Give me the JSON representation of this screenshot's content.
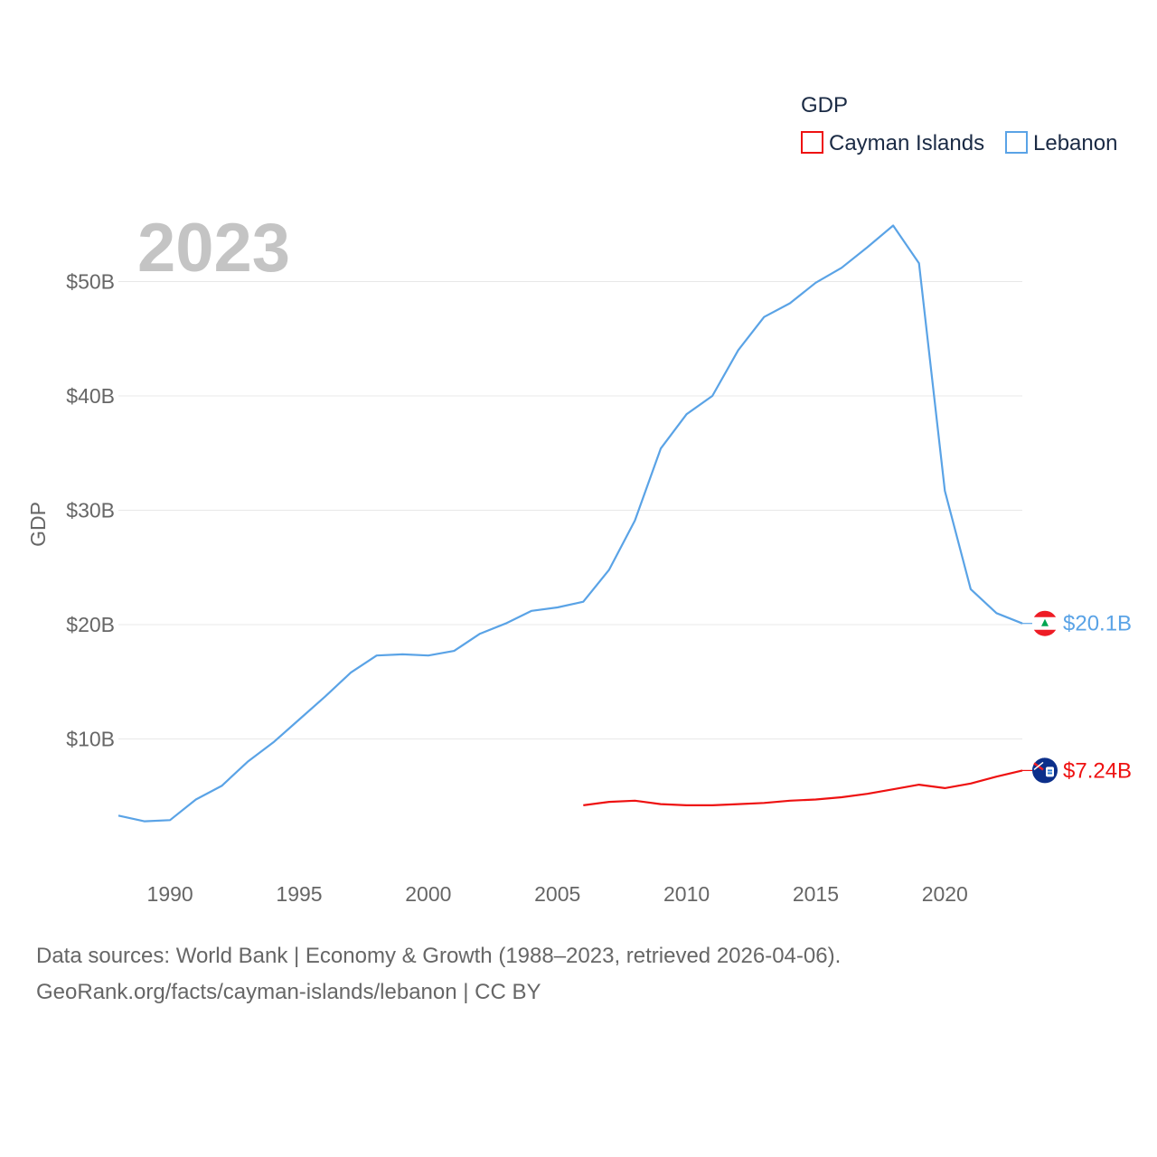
{
  "chart_data": {
    "type": "line",
    "year_label": "2023",
    "ylabel": "GDP",
    "legend_title": "GDP",
    "ylim": [
      0,
      55
    ],
    "y_ticks": [
      {
        "value": 10,
        "label": "$10B"
      },
      {
        "value": 20,
        "label": "$20B"
      },
      {
        "value": 30,
        "label": "$30B"
      },
      {
        "value": 40,
        "label": "$40B"
      },
      {
        "value": 50,
        "label": "$50B"
      }
    ],
    "xlim": [
      1988,
      2023
    ],
    "x_ticks": [
      {
        "value": 1990,
        "label": "1990"
      },
      {
        "value": 1995,
        "label": "1995"
      },
      {
        "value": 2000,
        "label": "2000"
      },
      {
        "value": 2005,
        "label": "2005"
      },
      {
        "value": 2010,
        "label": "2010"
      },
      {
        "value": 2015,
        "label": "2015"
      },
      {
        "value": 2020,
        "label": "2020"
      }
    ],
    "series": [
      {
        "name": "Cayman Islands",
        "color": "#ee1111",
        "end_label": "$7.24B",
        "flag_icon": "cayman-islands-flag-icon",
        "x": [
          2006,
          2007,
          2008,
          2009,
          2010,
          2011,
          2012,
          2013,
          2014,
          2015,
          2016,
          2017,
          2018,
          2019,
          2020,
          2021,
          2022,
          2023
        ],
        "values": [
          4.2,
          4.5,
          4.6,
          4.3,
          4.2,
          4.2,
          4.3,
          4.4,
          4.6,
          4.7,
          4.9,
          5.2,
          5.6,
          6.0,
          5.7,
          6.1,
          6.7,
          7.24
        ]
      },
      {
        "name": "Lebanon",
        "color": "#5aa3e6",
        "end_label": "$20.1B",
        "flag_icon": "lebanon-flag-icon",
        "x": [
          1988,
          1989,
          1990,
          1991,
          1992,
          1993,
          1994,
          1995,
          1996,
          1997,
          1998,
          1999,
          2000,
          2001,
          2002,
          2003,
          2004,
          2005,
          2006,
          2007,
          2008,
          2009,
          2010,
          2011,
          2012,
          2013,
          2014,
          2015,
          2016,
          2017,
          2018,
          2019,
          2020,
          2021,
          2022,
          2023
        ],
        "values": [
          3.3,
          2.8,
          2.9,
          4.7,
          5.9,
          8.0,
          9.7,
          11.7,
          13.7,
          15.8,
          17.3,
          17.4,
          17.3,
          17.7,
          19.2,
          20.1,
          21.2,
          21.5,
          22.0,
          24.8,
          29.1,
          35.4,
          38.4,
          40.0,
          44.0,
          46.9,
          48.1,
          49.9,
          51.2,
          53.0,
          54.9,
          51.6,
          31.7,
          23.1,
          21.0,
          20.1
        ]
      }
    ]
  },
  "footer": {
    "line1": "Data sources: World Bank | Economy & Growth (1988–2023, retrieved 2026-04-06).",
    "line2": "GeoRank.org/facts/cayman-islands/lebanon | CC BY"
  }
}
